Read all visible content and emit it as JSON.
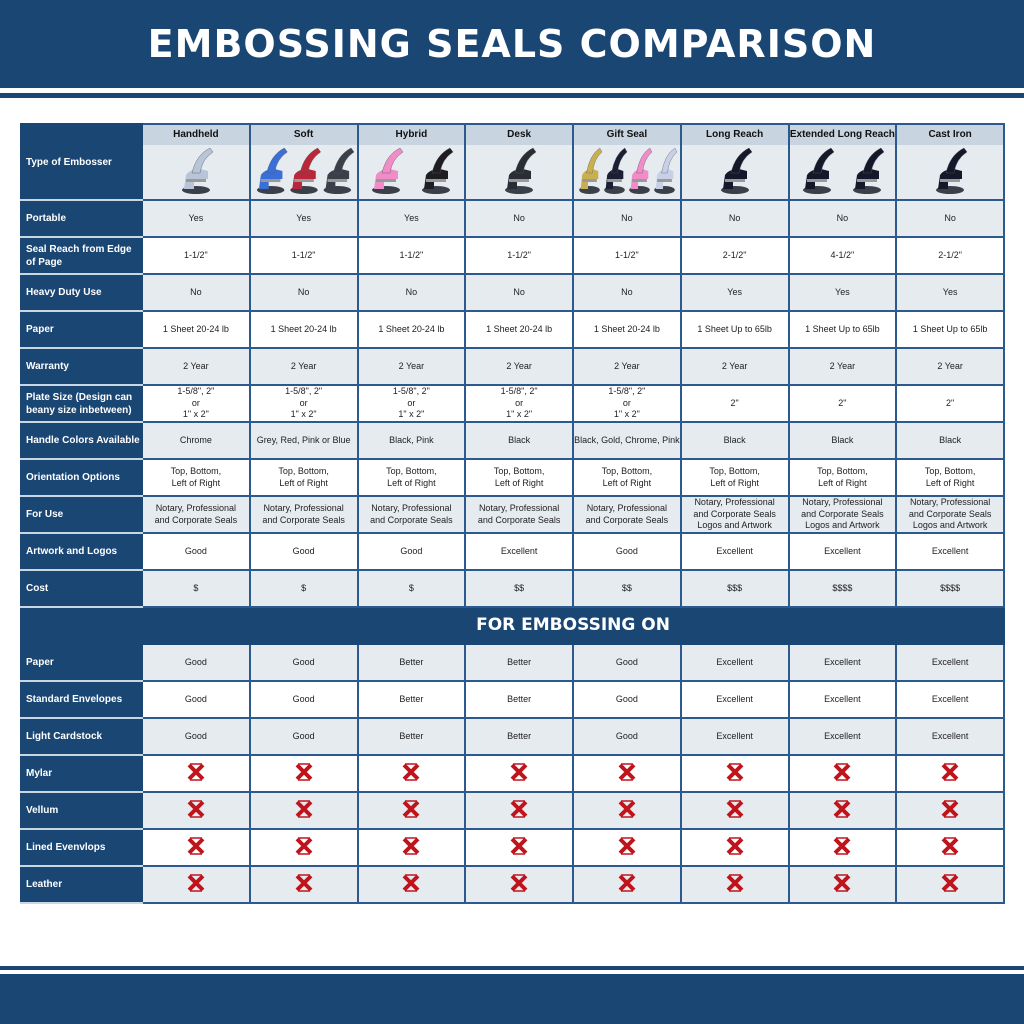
{
  "title": "EMBOSSING SEALS COMPARISON",
  "colors": {
    "navy": "#1a4674",
    "header_gray": "#c8d4e0",
    "row_gray": "#e6ebf0",
    "x_red": "#c0141c"
  },
  "corner_label": "Type of Embosser",
  "columns": [
    "Handheld",
    "Soft",
    "Hybrid",
    "Desk",
    "Gift Seal",
    "Long Reach",
    "Extended Long Reach",
    "Cast Iron"
  ],
  "column_images": [
    {
      "icon": "handheld-embosser-chrome",
      "colors": [
        "#b8c4d8"
      ]
    },
    {
      "icon": "soft-embossers",
      "colors": [
        "#3a6fd8",
        "#b8283a",
        "#3a3f4a"
      ]
    },
    {
      "icon": "hybrid-embossers",
      "colors": [
        "#f08cc8",
        "#1e1e22"
      ]
    },
    {
      "icon": "desk-embosser",
      "colors": [
        "#2a2d35"
      ]
    },
    {
      "icon": "gift-seal-embossers",
      "colors": [
        "#c8b050",
        "#1a1f33",
        "#f08cc8",
        "#c8d0e8"
      ]
    },
    {
      "icon": "long-reach-embosser",
      "colors": [
        "#15182a"
      ]
    },
    {
      "icon": "extended-long-reach-embossers",
      "colors": [
        "#15182a",
        "#15182a"
      ]
    },
    {
      "icon": "cast-iron-embosser",
      "colors": [
        "#15182a"
      ]
    }
  ],
  "rows": [
    {
      "label": "Portable",
      "values": [
        "Yes",
        "Yes",
        "Yes",
        "No",
        "No",
        "No",
        "No",
        "No"
      ]
    },
    {
      "label": "Seal Reach from Edge of Page",
      "values": [
        "1-1/2\"",
        "1-1/2\"",
        "1-1/2\"",
        "1-1/2\"",
        "1-1/2\"",
        "2-1/2\"",
        "4-1/2\"",
        "2-1/2\""
      ]
    },
    {
      "label": "Heavy Duty Use",
      "values": [
        "No",
        "No",
        "No",
        "No",
        "No",
        "Yes",
        "Yes",
        "Yes"
      ]
    },
    {
      "label": "Paper",
      "values": [
        "1 Sheet 20-24 lb",
        "1 Sheet 20-24 lb",
        "1 Sheet 20-24 lb",
        "1 Sheet 20-24 lb",
        "1 Sheet 20-24 lb",
        "1 Sheet Up to 65lb",
        "1 Sheet Up to 65lb",
        "1 Sheet Up to 65lb"
      ]
    },
    {
      "label": "Warranty",
      "values": [
        "2 Year",
        "2 Year",
        "2 Year",
        "2 Year",
        "2 Year",
        "2 Year",
        "2 Year",
        "2 Year"
      ]
    },
    {
      "label": "Plate Size (Design can beany size inbetween)",
      "values": [
        "1-5/8\", 2\"\nor\n1\" x 2\"",
        "1-5/8\", 2\"\nor\n1\" x 2\"",
        "1-5/8\", 2\"\nor\n1\" x 2\"",
        "1-5/8\", 2\"\nor\n1\" x 2\"",
        "1-5/8\", 2\"\nor\n1\" x 2\"",
        "2\"",
        "2\"",
        "2\""
      ]
    },
    {
      "label": "Handle Colors Available",
      "values": [
        "Chrome",
        "Grey, Red, Pink or Blue",
        "Black, Pink",
        "Black",
        "Black, Gold, Chrome, Pink",
        "Black",
        "Black",
        "Black"
      ]
    },
    {
      "label": "Orientation Options",
      "values": [
        "Top, Bottom,\nLeft of Right",
        "Top, Bottom,\nLeft of Right",
        "Top, Bottom,\nLeft of Right",
        "Top, Bottom,\nLeft of Right",
        "Top, Bottom,\nLeft of Right",
        "Top, Bottom,\nLeft of Right",
        "Top, Bottom,\nLeft of Right",
        "Top, Bottom,\nLeft of Right"
      ]
    },
    {
      "label": "For Use",
      "values": [
        "Notary, Professional\nand Corporate Seals",
        "Notary, Professional\nand Corporate Seals",
        "Notary, Professional\nand Corporate Seals",
        "Notary, Professional\nand Corporate Seals",
        "Notary, Professional\nand Corporate Seals",
        "Notary, Professional\nand Corporate Seals\nLogos and Artwork",
        "Notary, Professional\nand Corporate Seals\nLogos and Artwork",
        "Notary, Professional\nand Corporate Seals\nLogos and Artwork"
      ]
    },
    {
      "label": "Artwork and Logos",
      "values": [
        "Good",
        "Good",
        "Good",
        "Excellent",
        "Good",
        "Excellent",
        "Excellent",
        "Excellent"
      ]
    },
    {
      "label": "Cost",
      "values": [
        "$",
        "$",
        "$",
        "$$",
        "$$",
        "$$$",
        "$$$$",
        "$$$$"
      ]
    }
  ],
  "section_title": "FOR EMBOSSING ON",
  "embossing_rows": [
    {
      "label": "Paper",
      "values": [
        "Good",
        "Good",
        "Better",
        "Better",
        "Good",
        "Excellent",
        "Excellent",
        "Excellent"
      ]
    },
    {
      "label": "Standard Envelopes",
      "values": [
        "Good",
        "Good",
        "Better",
        "Better",
        "Good",
        "Excellent",
        "Excellent",
        "Excellent"
      ]
    },
    {
      "label": "Light Cardstock",
      "values": [
        "Good",
        "Good",
        "Better",
        "Better",
        "Good",
        "Excellent",
        "Excellent",
        "Excellent"
      ]
    },
    {
      "label": "Mylar",
      "values": [
        "x-icon",
        "x-icon",
        "x-icon",
        "x-icon",
        "x-icon",
        "x-icon",
        "x-icon",
        "x-icon"
      ]
    },
    {
      "label": "Vellum",
      "values": [
        "x-icon",
        "x-icon",
        "x-icon",
        "x-icon",
        "x-icon",
        "x-icon",
        "x-icon",
        "x-icon"
      ]
    },
    {
      "label": "Lined Evenvlops",
      "values": [
        "x-icon",
        "x-icon",
        "x-icon",
        "x-icon",
        "x-icon",
        "x-icon",
        "x-icon",
        "x-icon"
      ]
    },
    {
      "label": "Leather",
      "values": [
        "x-icon",
        "x-icon",
        "x-icon",
        "x-icon",
        "x-icon",
        "x-icon",
        "x-icon",
        "x-icon"
      ]
    }
  ]
}
